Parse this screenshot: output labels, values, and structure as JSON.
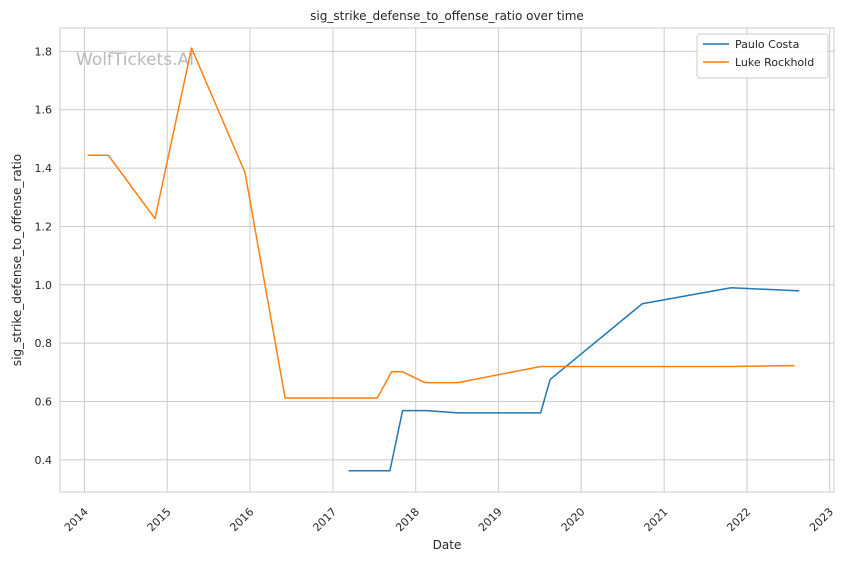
{
  "chart_data": {
    "type": "line",
    "title": "sig_strike_defense_to_offense_ratio over time",
    "xlabel": "Date",
    "ylabel": "sig_strike_defense_to_offense_ratio",
    "watermark": "WolfTickets.AI",
    "x_axis": {
      "type": "date",
      "range": [
        "2013-09-15",
        "2023-01-20"
      ],
      "ticks": [
        "2014",
        "2015",
        "2016",
        "2017",
        "2018",
        "2019",
        "2020",
        "2021",
        "2022",
        "2023"
      ]
    },
    "y_axis": {
      "range": [
        0.29,
        1.88
      ],
      "ticks": [
        "0.4",
        "0.6",
        "0.8",
        "1.0",
        "1.2",
        "1.4",
        "1.6",
        "1.8"
      ]
    },
    "grid": true,
    "legend_position": "top-right",
    "series": [
      {
        "name": "Paulo Costa",
        "color": "#1f77b4",
        "points": [
          {
            "x": "2017-03-11",
            "y": 0.363
          },
          {
            "x": "2017-09-09",
            "y": 0.363
          },
          {
            "x": "2017-11-04",
            "y": 0.569
          },
          {
            "x": "2018-02-15",
            "y": 0.569
          },
          {
            "x": "2018-07-07",
            "y": 0.561
          },
          {
            "x": "2019-07-06",
            "y": 0.561
          },
          {
            "x": "2019-08-17",
            "y": 0.676
          },
          {
            "x": "2020-09-26",
            "y": 0.935
          },
          {
            "x": "2021-10-23",
            "y": 0.99
          },
          {
            "x": "2022-08-20",
            "y": 0.979
          }
        ]
      },
      {
        "name": "Luke Rockhold",
        "color": "#ff7f0e",
        "points": [
          {
            "x": "2014-01-15",
            "y": 1.444
          },
          {
            "x": "2014-04-16",
            "y": 1.444
          },
          {
            "x": "2014-11-08",
            "y": 1.227
          },
          {
            "x": "2015-04-18",
            "y": 1.811
          },
          {
            "x": "2015-12-10",
            "y": 1.385
          },
          {
            "x": "2016-06-04",
            "y": 0.612
          },
          {
            "x": "2017-07-16",
            "y": 0.612
          },
          {
            "x": "2017-09-16",
            "y": 0.702
          },
          {
            "x": "2017-11-04",
            "y": 0.702
          },
          {
            "x": "2018-02-10",
            "y": 0.665
          },
          {
            "x": "2018-07-07",
            "y": 0.665
          },
          {
            "x": "2019-07-06",
            "y": 0.72
          },
          {
            "x": "2021-10-23",
            "y": 0.72
          },
          {
            "x": "2022-07-30",
            "y": 0.723
          }
        ]
      }
    ]
  }
}
